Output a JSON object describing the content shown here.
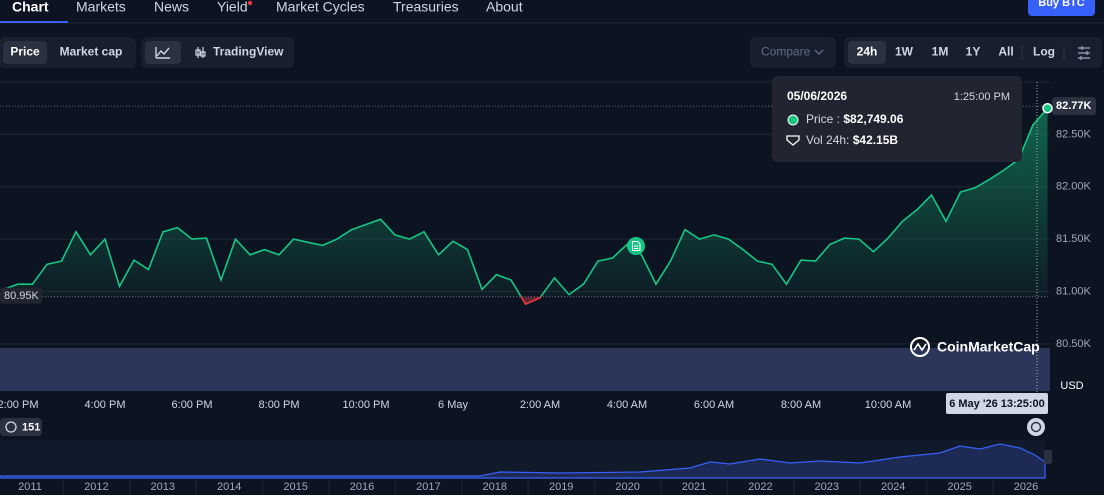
{
  "nav": {
    "tabs": [
      "Chart",
      "Markets",
      "News",
      "Yield",
      "Market Cycles",
      "Treasuries",
      "About"
    ],
    "buy_button": "Buy BTC"
  },
  "toolbar": {
    "price": "Price",
    "market_cap": "Market cap",
    "tradingview": "TradingView",
    "compare": "Compare",
    "ranges": [
      "24h",
      "1W",
      "1M",
      "1Y",
      "All"
    ],
    "log": "Log"
  },
  "tooltip": {
    "date": "05/06/2026",
    "time": "1:25:00 PM",
    "price_label": "Price : ",
    "price_value": "$82,749.06",
    "volume_label": "Vol 24h: ",
    "volume_value": "$42.15B"
  },
  "chart_data": {
    "type": "line",
    "categories": [
      null,
      "2:00 PM",
      null,
      null,
      null,
      null,
      null,
      "4:00 PM",
      null,
      null,
      null,
      null,
      null,
      "6:00 PM",
      null,
      null,
      null,
      null,
      null,
      "8:00 PM",
      null,
      null,
      null,
      null,
      null,
      "10:00 PM",
      null,
      null,
      null,
      null,
      null,
      "6 May",
      null,
      null,
      null,
      null,
      null,
      "2:00 AM",
      null,
      null,
      null,
      null,
      null,
      "4:00 AM",
      null,
      null,
      null,
      null,
      null,
      "6:00 AM",
      null,
      null,
      null,
      null,
      null,
      "8:00 AM",
      null,
      null,
      null,
      null,
      null,
      "10:00 AM",
      null,
      null,
      null,
      null,
      null,
      null,
      null,
      null,
      null,
      null,
      null
    ],
    "values": [
      81020,
      81070,
      81070,
      81260,
      81290,
      81570,
      81350,
      81500,
      81050,
      81300,
      81210,
      81570,
      81610,
      81500,
      81510,
      81110,
      81500,
      81350,
      81400,
      81350,
      81500,
      81470,
      81440,
      81500,
      81590,
      81640,
      81690,
      81540,
      81500,
      81570,
      81350,
      81480,
      81400,
      81020,
      81160,
      81110,
      80880,
      80940,
      81130,
      80970,
      81070,
      81290,
      81320,
      81450,
      81350,
      81070,
      81290,
      81590,
      81500,
      81540,
      81500,
      81400,
      81290,
      81260,
      81070,
      81300,
      81290,
      81450,
      81510,
      81500,
      81380,
      81510,
      81670,
      81780,
      81920,
      81670,
      81950,
      81990,
      82070,
      82160,
      82260,
      82590,
      82749
    ],
    "color": "#16c784",
    "below_color": "#ea3943",
    "ylim": [
      80050,
      83000
    ],
    "yticks": [
      {
        "value": 80500,
        "label": "80.50K"
      },
      {
        "value": 81000,
        "label": "81.00K"
      },
      {
        "value": 81500,
        "label": "81.50K"
      },
      {
        "value": 82000,
        "label": "82.00K"
      },
      {
        "value": 82500,
        "label": "82.50K"
      }
    ],
    "baseline": {
      "value": 80950,
      "label": "80.95K"
    },
    "last_price": {
      "value": 82770,
      "label": "82.77K"
    },
    "currency": "USD",
    "crosshair_label": "6 May '26 13:25:00",
    "watermark": "CoinMarketCap",
    "grid": true
  },
  "navigator": {
    "badge": "151",
    "years": [
      "2011",
      "2012",
      "2013",
      "2014",
      "2015",
      "2016",
      "2017",
      "2018",
      "2019",
      "2020",
      "2021",
      "2022",
      "2023",
      "2024",
      "2025",
      "2026"
    ]
  }
}
